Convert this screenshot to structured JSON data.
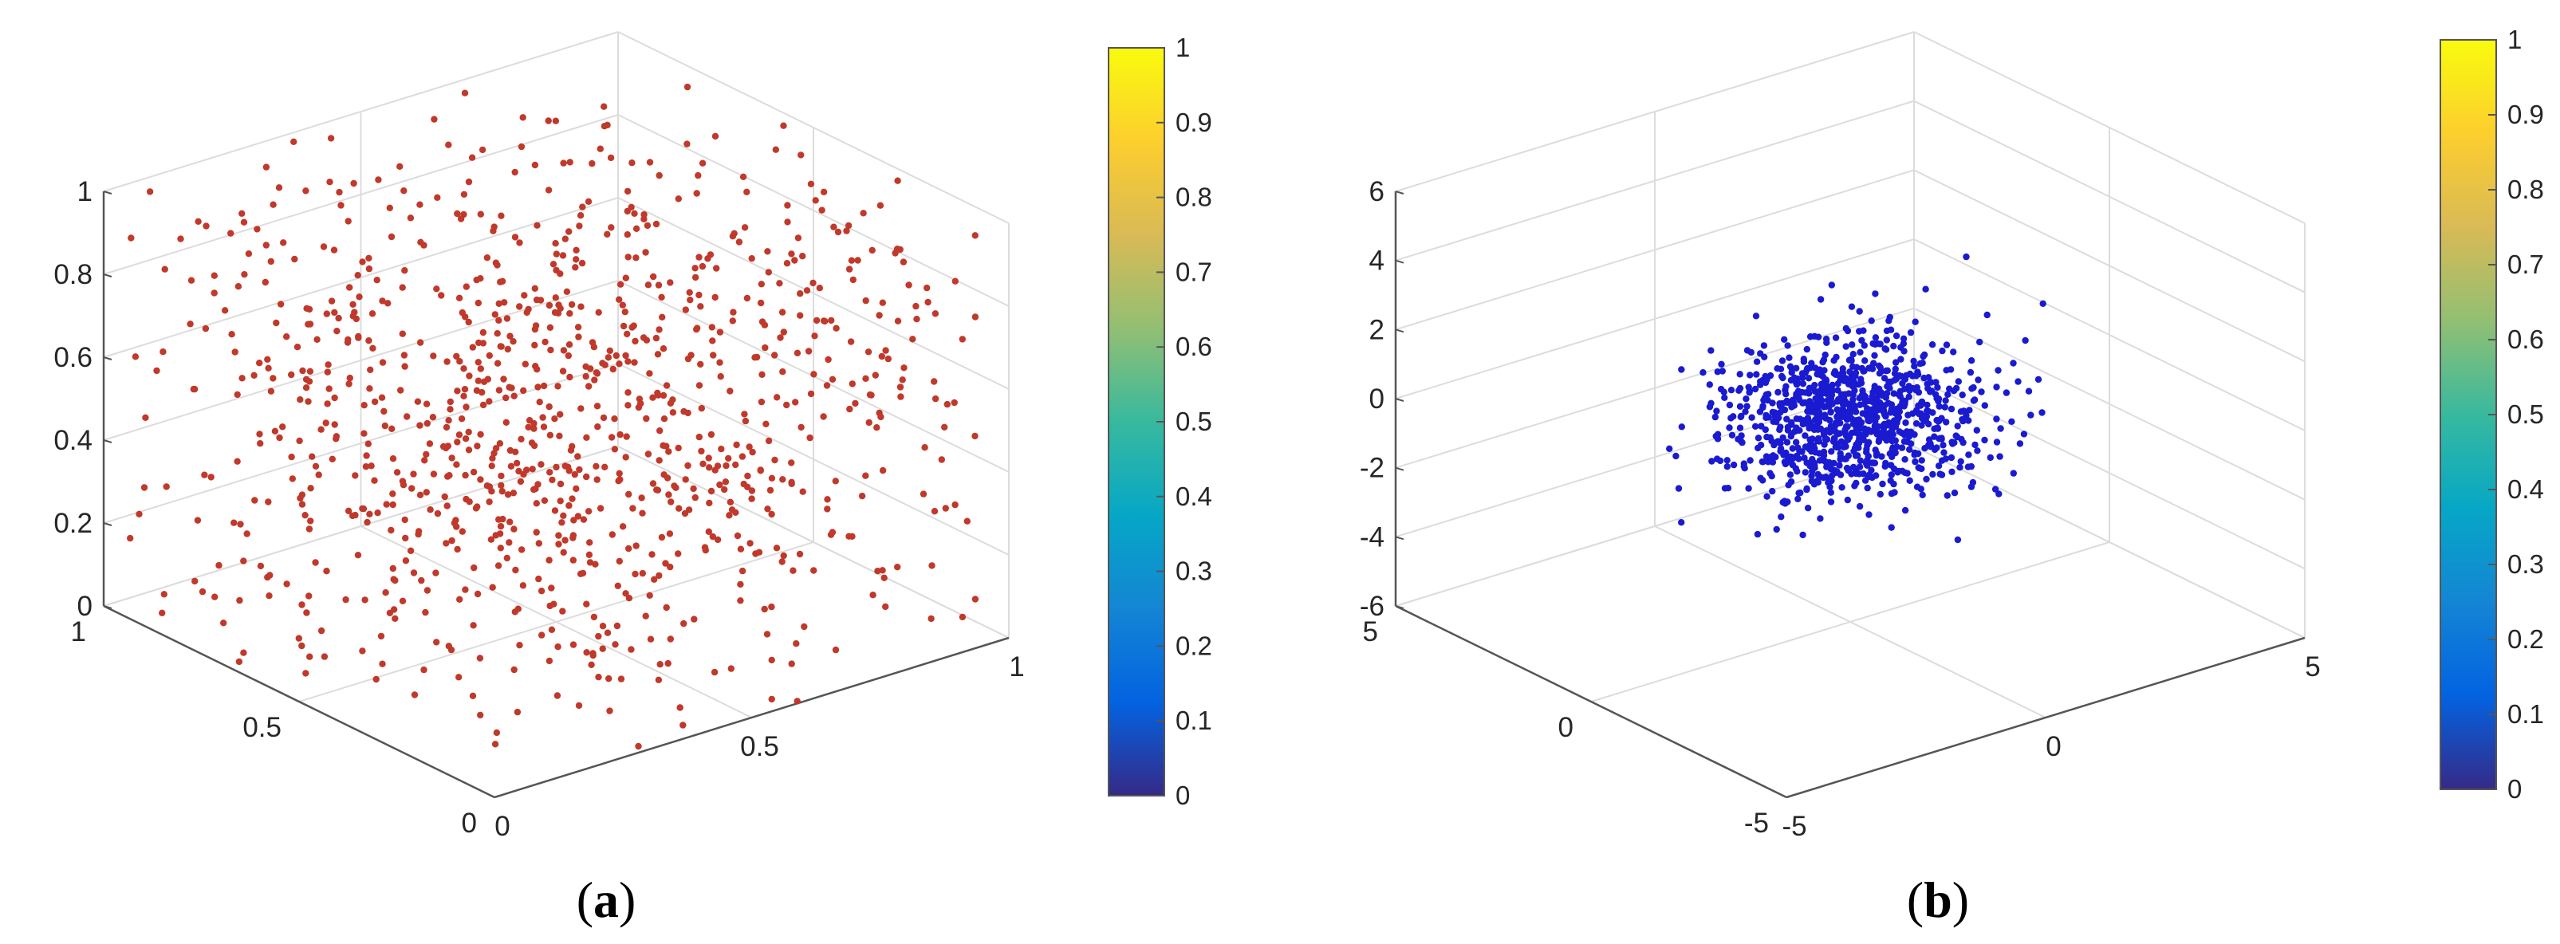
{
  "colors": {
    "panel_a_points": "#c0392b",
    "panel_b_points": "#1a1ad0",
    "axis": "#555555",
    "grid": "#dcdcdc",
    "parula": [
      "#352a87",
      "#0363e1",
      "#1485d4",
      "#06a7c6",
      "#38b99e",
      "#92bf73",
      "#d9ba56",
      "#fcce2e",
      "#f9fb0e"
    ]
  },
  "chart_data": [
    {
      "type": "scatter",
      "panel_label": "a",
      "x_ticks": [
        "0",
        "0.5",
        "1"
      ],
      "y_ticks": [
        "0",
        "0.5",
        "1"
      ],
      "z_ticks": [
        "0",
        "0.2",
        "0.4",
        "0.6",
        "0.8",
        "1"
      ],
      "xlim": [
        0,
        1
      ],
      "ylim": [
        0,
        1
      ],
      "zlim": [
        0,
        1
      ],
      "distribution": "uniform",
      "point_count": 1000,
      "colorbar": {
        "ticks": [
          "0",
          "0.1",
          "0.2",
          "0.3",
          "0.4",
          "0.5",
          "0.6",
          "0.7",
          "0.8",
          "0.9",
          "1"
        ],
        "range": [
          0,
          1
        ]
      },
      "grid": true
    },
    {
      "type": "scatter",
      "panel_label": "b",
      "x_ticks": [
        "-5",
        "0",
        "5"
      ],
      "y_ticks": [
        "-5",
        "0",
        "5"
      ],
      "z_ticks": [
        "-6",
        "-4",
        "-2",
        "0",
        "2",
        "4",
        "6"
      ],
      "xlim": [
        -5,
        5
      ],
      "ylim": [
        -5,
        5
      ],
      "zlim": [
        -6,
        6
      ],
      "distribution": "normal (mean 0, std 1)",
      "point_count": 1000,
      "colorbar": {
        "ticks": [
          "0",
          "0.1",
          "0.2",
          "0.3",
          "0.4",
          "0.5",
          "0.6",
          "0.7",
          "0.8",
          "0.9",
          "1"
        ],
        "range": [
          0,
          1
        ]
      },
      "grid": true
    }
  ]
}
